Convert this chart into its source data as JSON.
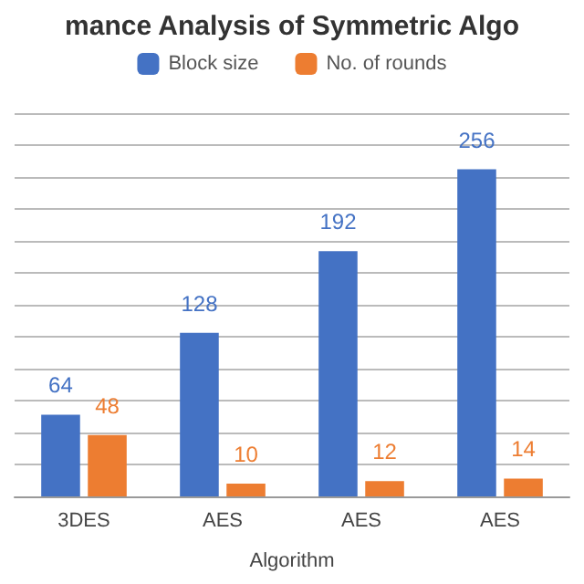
{
  "chart_data": {
    "type": "bar",
    "title": "mance Analysis of Symmetric Algo",
    "xlabel": "Algorithm",
    "categories": [
      "3DES",
      "AES",
      "AES",
      "AES"
    ],
    "series": [
      {
        "name": "Block size",
        "color": "#4472c4",
        "values": [
          64,
          128,
          192,
          256
        ]
      },
      {
        "name": "No. of rounds",
        "color": "#ed7d31",
        "values": [
          48,
          10,
          12,
          14
        ]
      }
    ],
    "ylim": [
      0,
      300
    ],
    "yticks": [
      {
        "value": 0,
        "label": null
      },
      {
        "value": 25,
        "label": null
      },
      {
        "value": 50,
        "label": null
      },
      {
        "value": 75,
        "label": null
      },
      {
        "value": 100,
        "label": null
      },
      {
        "value": 125,
        "label": null
      },
      {
        "value": 150,
        "label": null
      },
      {
        "value": 175,
        "label": null
      },
      {
        "value": 200,
        "label": null
      },
      {
        "value": 225,
        "label": null
      },
      {
        "value": 250,
        "label": null
      },
      {
        "value": 275,
        "label": null
      },
      {
        "value": 300,
        "label": null
      }
    ],
    "tick_labels": "x",
    "grid": "y",
    "legend": "top",
    "data_labels": true
  }
}
